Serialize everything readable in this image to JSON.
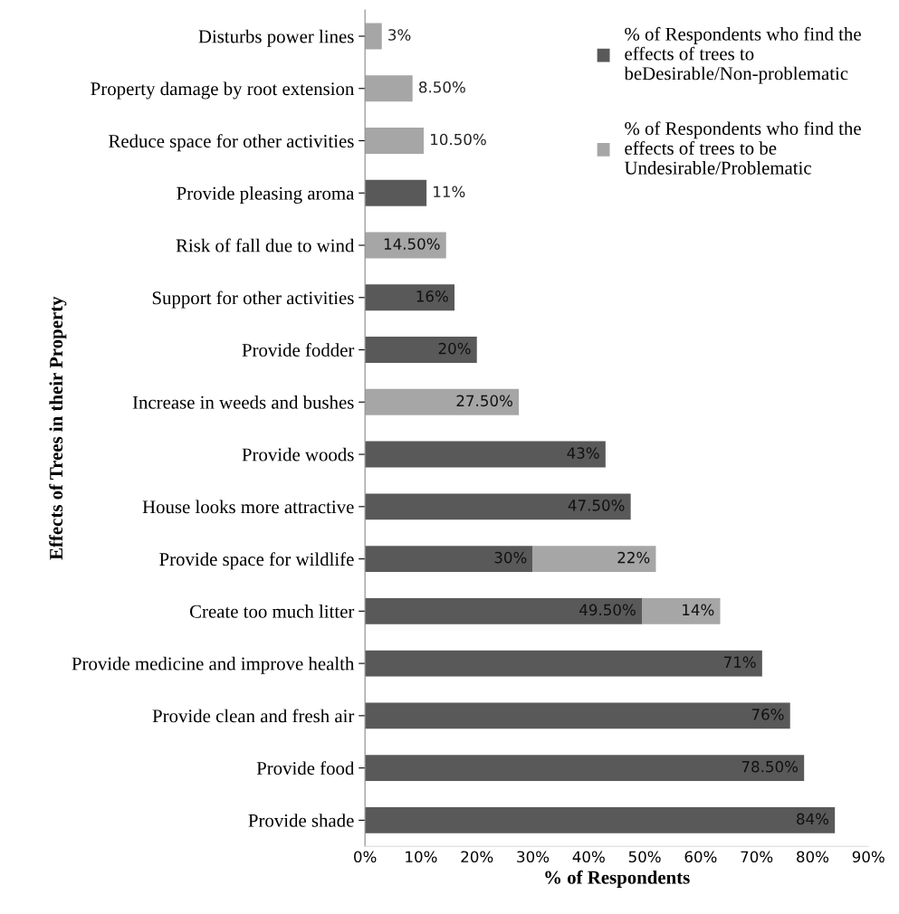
{
  "chart_data": {
    "type": "bar",
    "orientation": "horizontal",
    "stacked": true,
    "xlabel": "% of Respondents",
    "ylabel": "Effects of Trees in their Property",
    "categories": [
      "Disturbs power lines",
      "Property damage by root extension",
      "Reduce space for other activities",
      "Provide pleasing aroma",
      "Risk of fall due to wind",
      "Support for other activities",
      "Provide fodder",
      "Increase in weeds and bushes",
      "Provide woods",
      "House looks more attractive",
      "Provide space for wildlife",
      "Create too much litter",
      "Provide medicine and improve health",
      "Provide clean and fresh air",
      "Provide food",
      "Provide shade"
    ],
    "series": [
      {
        "name": "% of Respondents who find the effects of trees to beDesirable/Non-problematic",
        "color": "#595959",
        "values": [
          null,
          null,
          null,
          11,
          null,
          16,
          20,
          null,
          43,
          47.5,
          30,
          49.5,
          71,
          76,
          78.5,
          84
        ],
        "value_labels": [
          null,
          null,
          null,
          "11%",
          null,
          "16%",
          "20%",
          null,
          "43%",
          "47.50%",
          "30%",
          "49.50%",
          "71%",
          "76%",
          "78.50%",
          "84%"
        ]
      },
      {
        "name": "% of Respondents who find the effects of trees to be Undesirable/Problematic",
        "color": "#a6a6a6",
        "values": [
          3,
          8.5,
          10.5,
          null,
          14.5,
          null,
          null,
          27.5,
          null,
          null,
          22,
          14,
          null,
          null,
          null,
          null
        ],
        "value_labels": [
          "3%",
          "8.50%",
          "10.50%",
          null,
          "14.50%",
          null,
          null,
          "27.50%",
          null,
          null,
          "22%",
          "14%",
          null,
          null,
          null,
          null
        ]
      }
    ],
    "xlim": [
      0,
      90
    ],
    "xticks": [
      {
        "value": 0,
        "label": "0%"
      },
      {
        "value": 10,
        "label": "10%"
      },
      {
        "value": 20,
        "label": "20%"
      },
      {
        "value": 30,
        "label": "30%"
      },
      {
        "value": 40,
        "label": "40%"
      },
      {
        "value": 50,
        "label": "50%"
      },
      {
        "value": 60,
        "label": "60%"
      },
      {
        "value": 70,
        "label": "70%"
      },
      {
        "value": 80,
        "label": "80%"
      },
      {
        "value": 90,
        "label": "90%"
      }
    ],
    "legend": "top right",
    "grid": false
  }
}
